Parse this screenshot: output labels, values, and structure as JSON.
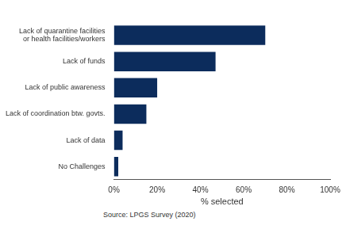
{
  "chart_data": {
    "type": "bar",
    "orientation": "horizontal",
    "categories": [
      [
        "Lack of quarantine facilities",
        "or health facilities/workers"
      ],
      "Lack of funds",
      "Lack of public awareness",
      "Lack of coordination btw. govts.",
      "Lack of data",
      "No Challenges"
    ],
    "values": [
      70,
      47,
      20,
      15,
      4,
      2
    ],
    "color": "#0c2c5c",
    "x_label": "% selected",
    "xlim": [
      0,
      100
    ],
    "xticks": [
      {
        "value": 0,
        "label": "0%"
      },
      {
        "value": 20,
        "label": "20%"
      },
      {
        "value": 40,
        "label": "40%"
      },
      {
        "value": 60,
        "label": "60%"
      },
      {
        "value": 80,
        "label": "80%"
      },
      {
        "value": 100,
        "label": "100%"
      }
    ],
    "grid": false,
    "annotations": [
      "Source: LPGS Survey (2020)"
    ]
  }
}
